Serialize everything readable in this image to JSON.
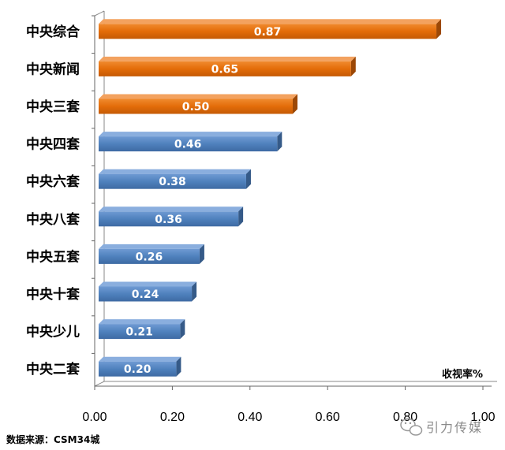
{
  "chart_data": {
    "type": "bar",
    "orientation": "horizontal",
    "categories": [
      "中央综合",
      "中央新闻",
      "中央三套",
      "中央四套",
      "中央六套",
      "中央八套",
      "中央五套",
      "中央十套",
      "中央少儿",
      "中央二套"
    ],
    "values": [
      0.87,
      0.65,
      0.5,
      0.46,
      0.38,
      0.36,
      0.26,
      0.24,
      0.21,
      0.2
    ],
    "value_labels": [
      "0.87",
      "0.65",
      "0.50",
      "0.46",
      "0.38",
      "0.36",
      "0.26",
      "0.24",
      "0.21",
      "0.20"
    ],
    "bar_colors": [
      "#E36C09",
      "#E36C09",
      "#E36C09",
      "#4F81BD",
      "#4F81BD",
      "#4F81BD",
      "#4F81BD",
      "#4F81BD",
      "#4F81BD",
      "#4F81BD"
    ],
    "xlim": [
      0,
      1.0
    ],
    "x_ticks": [
      "0.00",
      "0.20",
      "0.40",
      "0.60",
      "0.80",
      "1.00"
    ],
    "x_tick_values": [
      0,
      0.2,
      0.4,
      0.6,
      0.8,
      1.0
    ],
    "unit_label": "收视率%",
    "source": "数据来源：CSM34城",
    "watermark": "引力传媒",
    "grid": false,
    "style": "3d"
  }
}
